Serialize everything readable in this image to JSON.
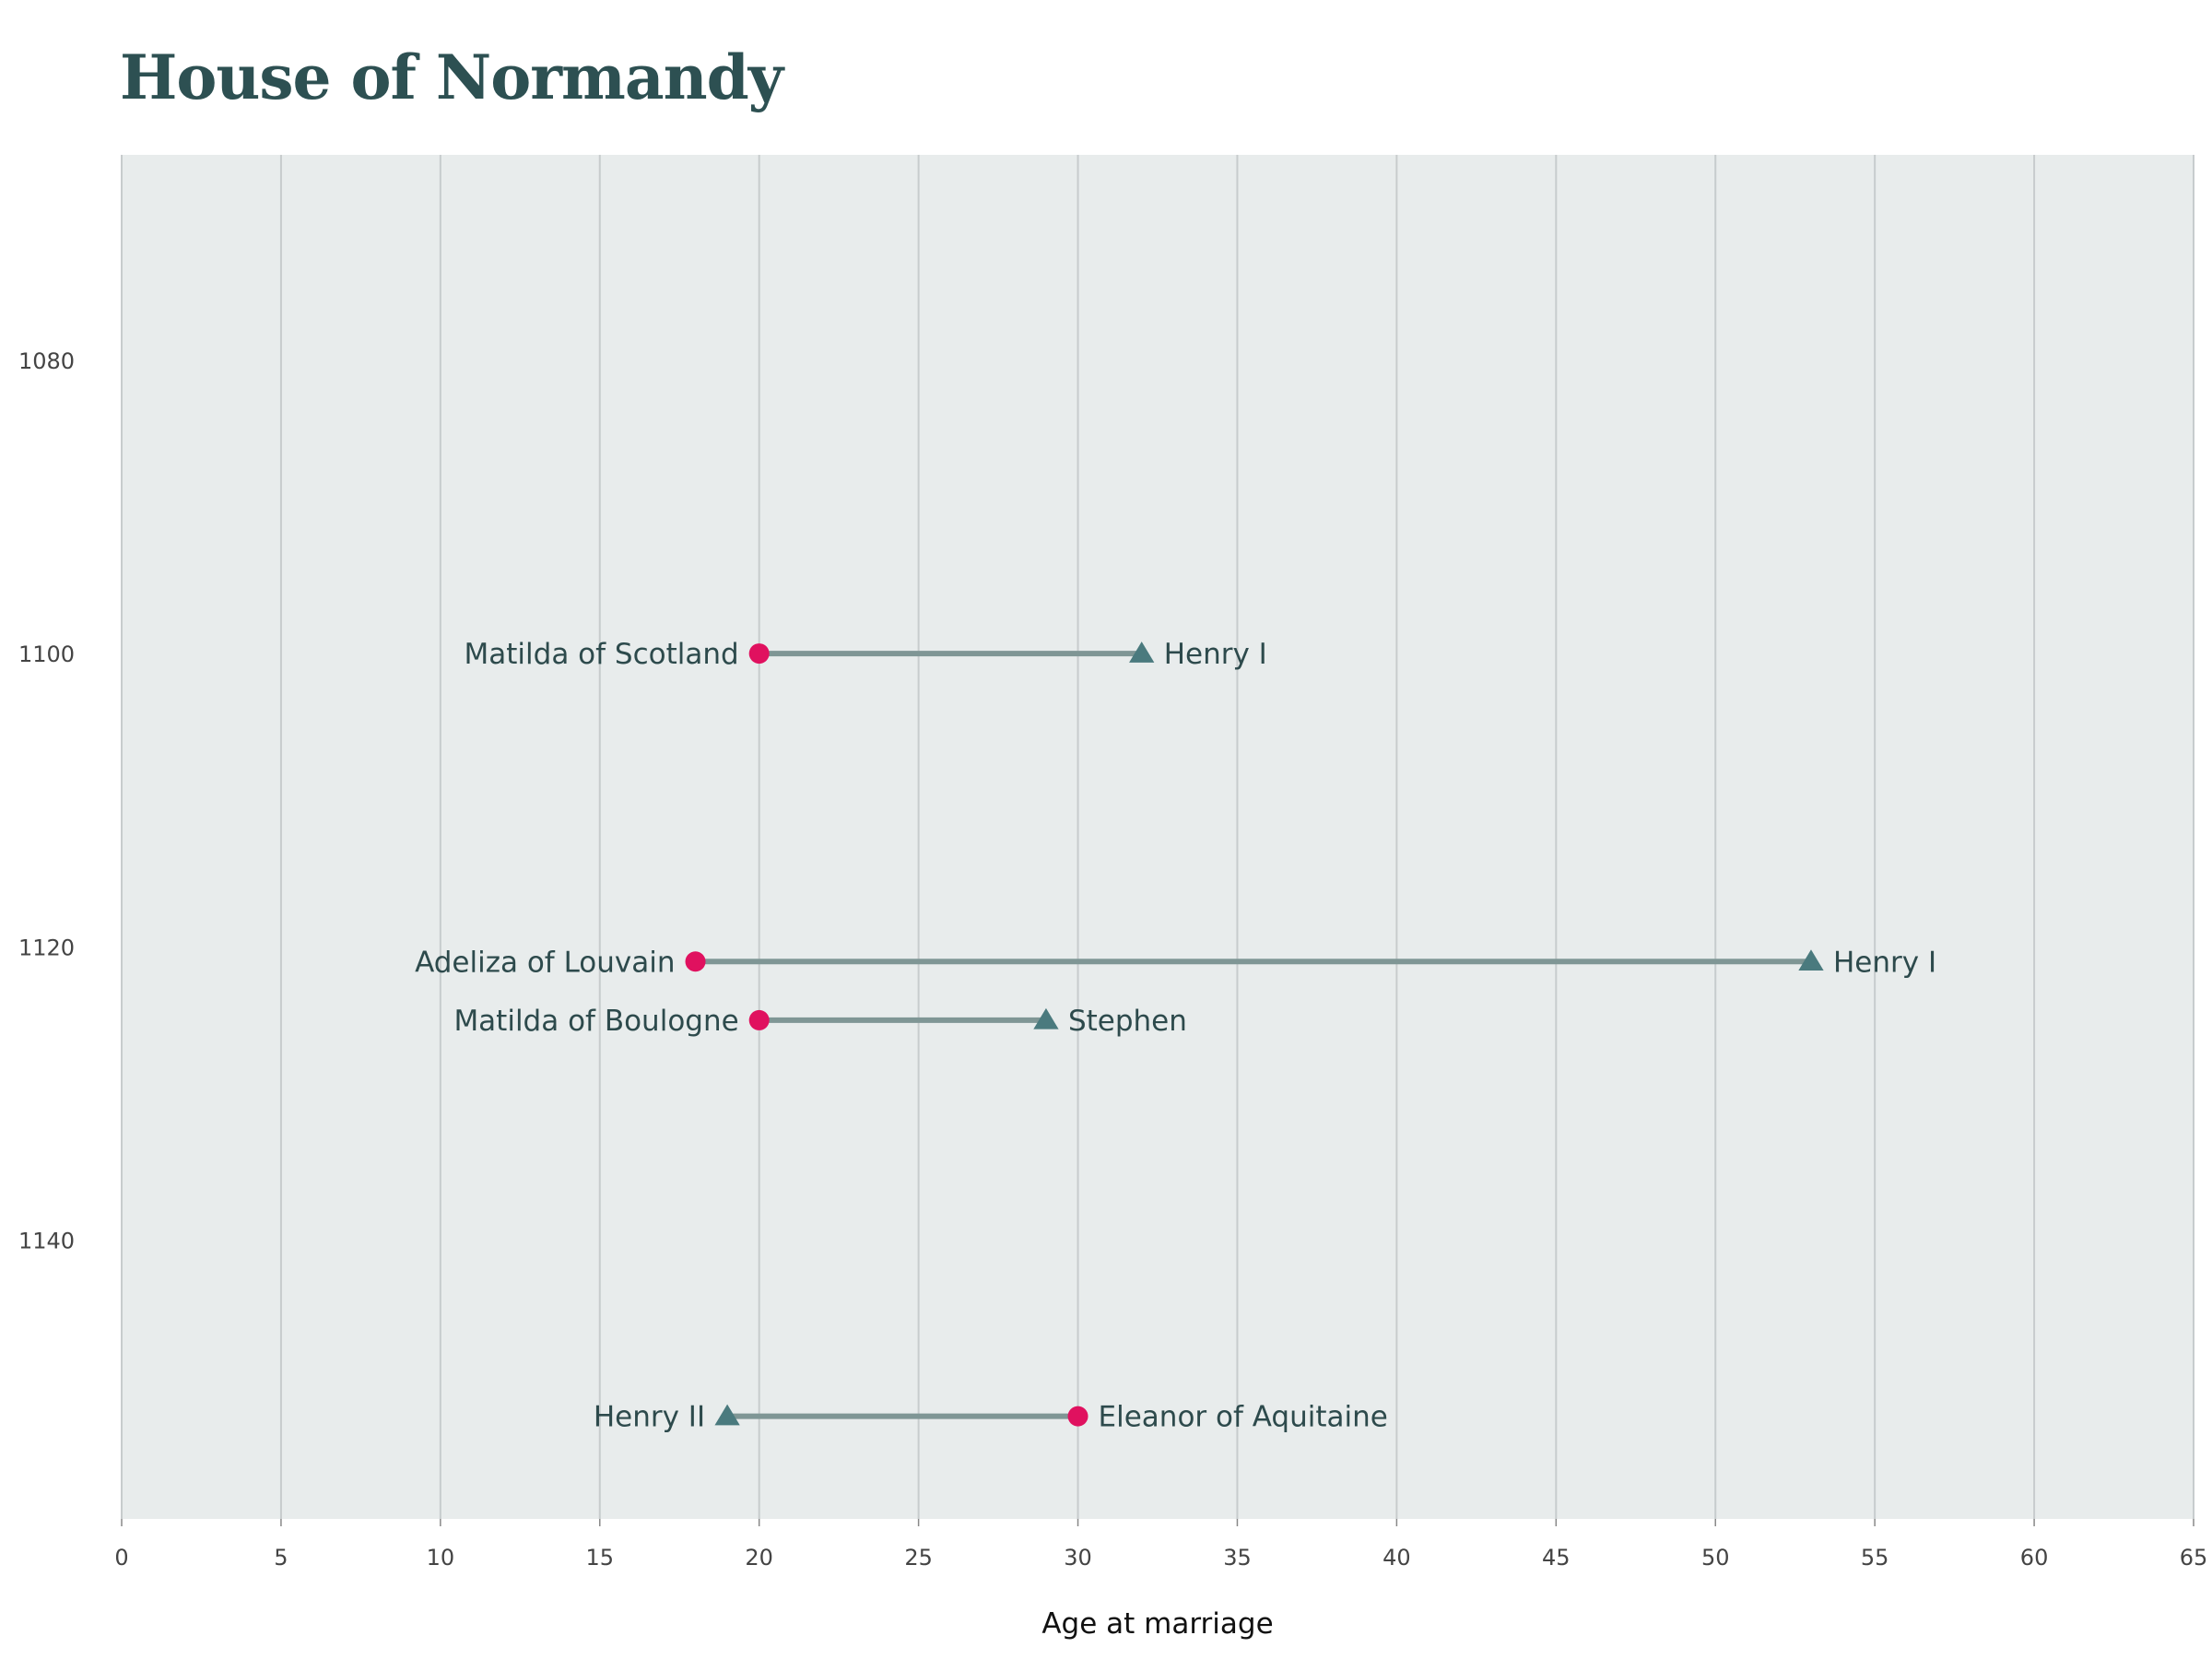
{
  "chart_data": {
    "type": "dumbbell",
    "title": "House of Normandy",
    "xlabel": "Age at marriage",
    "ylabel": "",
    "xlim": [
      0,
      65
    ],
    "ylim": [
      1066,
      1159
    ],
    "x_ticks": [
      0,
      5,
      10,
      15,
      20,
      25,
      30,
      35,
      40,
      45,
      50,
      55,
      60,
      65
    ],
    "y_ticks": [
      1080,
      1100,
      1120,
      1140
    ],
    "grid": "vertical",
    "colors": {
      "background": "#e8ecec",
      "grid": "#c7cccd",
      "wife_marker": "#e0115f",
      "husband_marker": "#4a7a7e",
      "connector": "#7f9695",
      "label_text": "#2d4a4c",
      "title_text": "#2d5052"
    },
    "series": [
      {
        "name": "",
        "marker": "circle",
        "role": "wife"
      },
      {
        "name": "",
        "marker": "triangle",
        "role": "husband"
      }
    ],
    "marriages": [
      {
        "year": 1100,
        "wife": "Matilda of Scotland",
        "wife_age": 20,
        "husband": "Henry I",
        "husband_age": 32
      },
      {
        "year": 1121,
        "wife": "Adeliza of Louvain",
        "wife_age": 18,
        "husband": "Henry I",
        "husband_age": 53
      },
      {
        "year": 1125,
        "wife": "Matilda of Boulogne",
        "wife_age": 20,
        "husband": "Stephen",
        "husband_age": 29
      },
      {
        "year": 1152,
        "wife": "Eleanor of Aquitaine",
        "wife_age": 30,
        "husband": "Henry II",
        "husband_age": 19
      }
    ]
  }
}
